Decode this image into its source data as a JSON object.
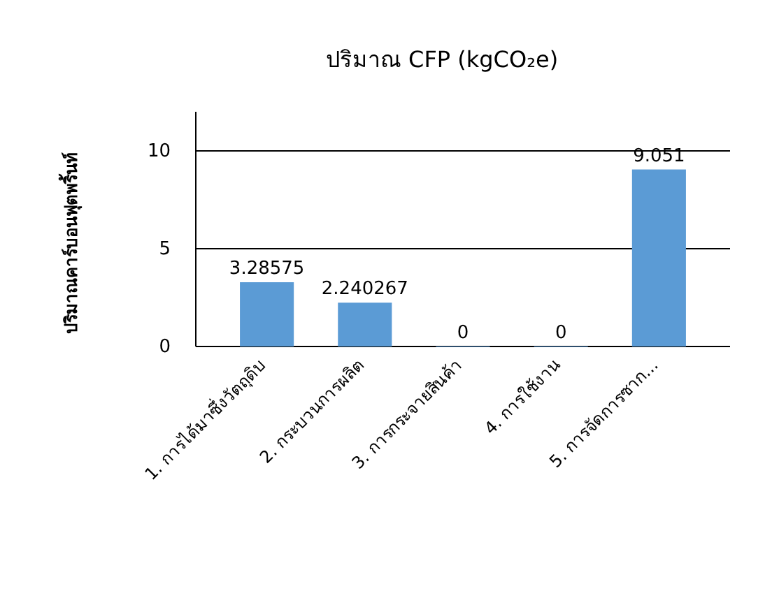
{
  "chart_data": {
    "type": "bar",
    "title": "ปริมาณ CFP (kgCO₂e)",
    "ylabel": "ปริมาณคาร์บอนฟุตพริ้นท์",
    "categories": [
      "1. การได้มาซึ่งวัตถุดิบ",
      "2. กระบวนการผลิต",
      "3. การกระจายสินค้า",
      "4. การใช้งาน",
      "5. การจัดการซาก..."
    ],
    "values": [
      3.28575,
      2.240267,
      0,
      0,
      9.051
    ],
    "color": "#5b9bd5",
    "ylim": [
      0,
      12
    ],
    "yticks": [
      0,
      5,
      10
    ],
    "grid": "y",
    "data_labels": true
  }
}
